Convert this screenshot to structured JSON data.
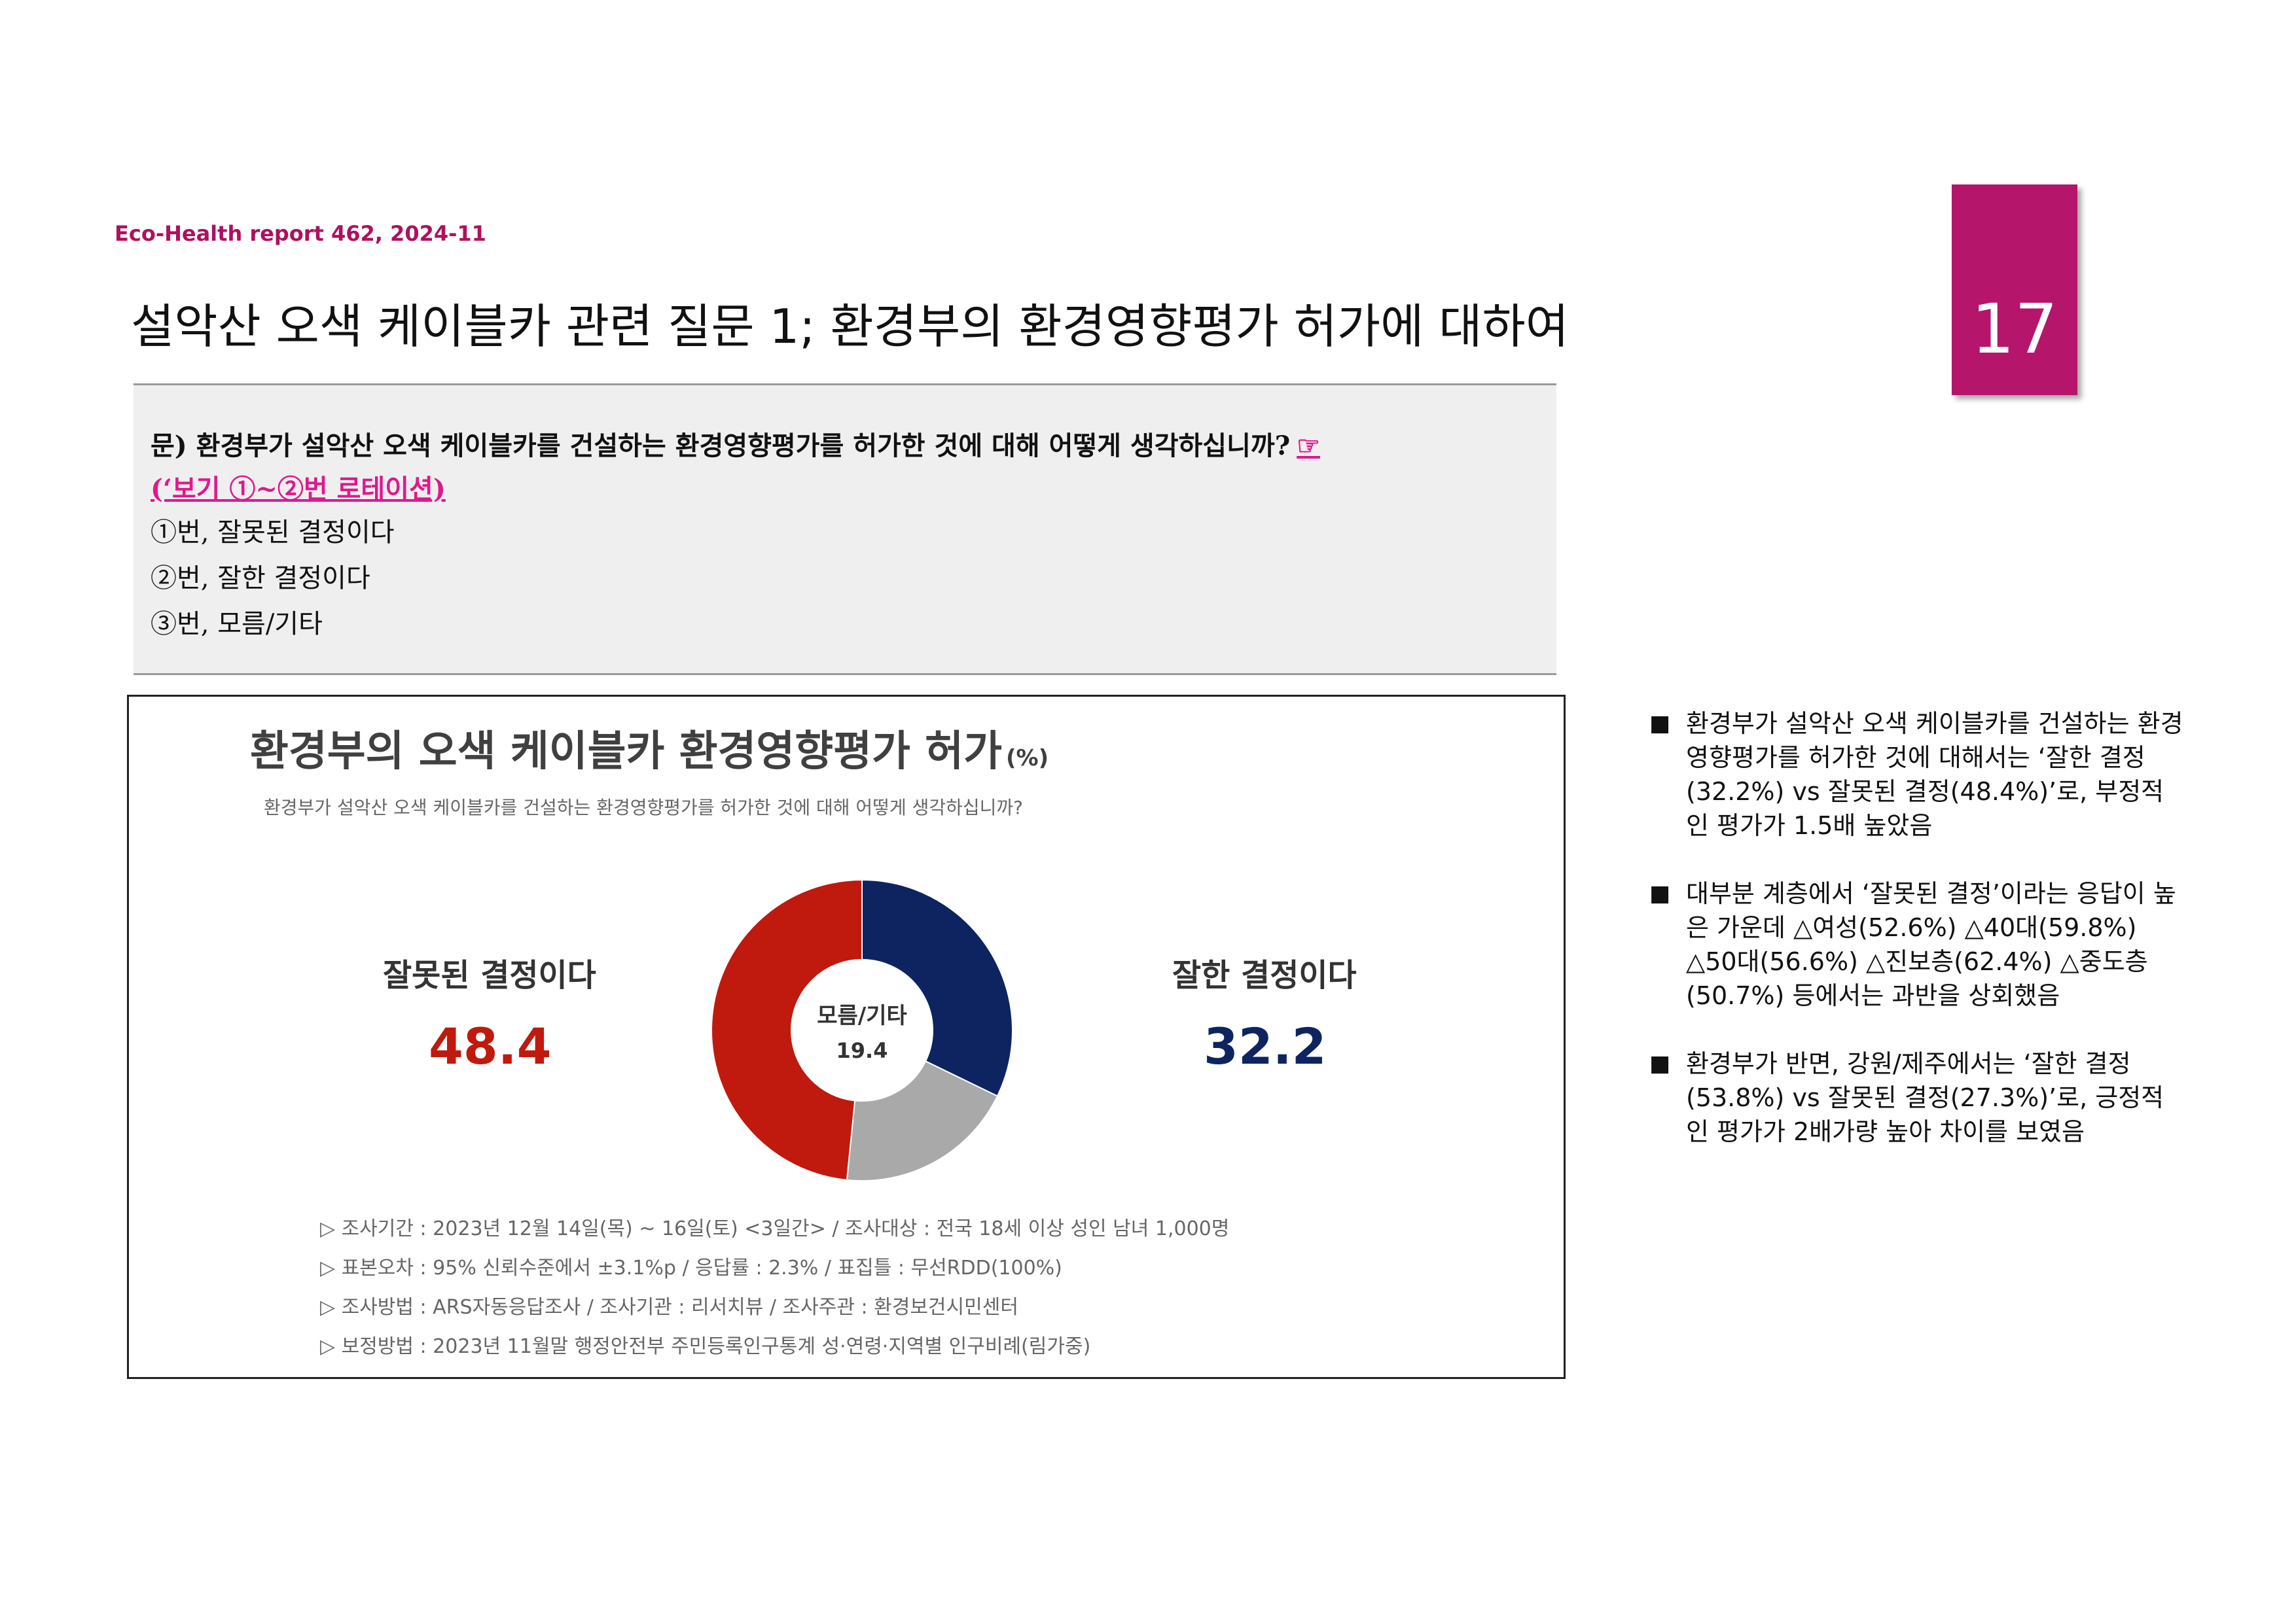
{
  "header": {
    "report_label": "Eco-Health report 462, 2024-11",
    "page_number": "17",
    "title": "설악산 오색 케이블카 관련 질문 1; 환경부의 환경영향평가 허가에 대하여"
  },
  "question_box": {
    "question": "문) 환경부가 설악산 오색 케이블카를 건설하는 환경영향평가를 허가한 것에 대해 어떻게 생각하십니까?",
    "pointer": "☞",
    "rotation_note": "(‘보기 ①~②번 로테이션)",
    "options": [
      "①번, 잘못된 결정이다",
      "②번, 잘한 결정이다",
      "③번, 모름/기타"
    ]
  },
  "chart_data": {
    "type": "pie",
    "title": "환경부의 오색 케이블카 환경영향평가 허가",
    "unit": "(%)",
    "subtitle": "환경부가 설악산 오색 케이블카를 건설하는 환경영향평가를 허가한 것에 대해 어떻게 생각하십니까?",
    "categories": [
      "잘한 결정이다",
      "모름/기타",
      "잘못된 결정이다"
    ],
    "values": [
      32.2,
      19.4,
      48.4
    ],
    "value_labels": [
      "32.2",
      "19.4",
      "48.4"
    ],
    "colors": [
      "#0d2461",
      "#a9a9a9",
      "#c0190e"
    ],
    "notes": [
      "▷ 조사기간 : 2023년 12월 14일(목) ~ 16일(토) <3일간> / 조사대상 : 전국 18세 이상 성인 남녀 1,000명",
      "▷ 표본오차 : 95% 신뢰수준에서 ±3.1%p / 응답률 : 2.3% / 표집틀 : 무선RDD(100%)",
      "▷ 조사방법 : ARS자동응답조사 / 조사기관 : 리서치뷰 / 조사주관 : 환경보건시민센터",
      "▷ 보정방법 : 2023년 11월말 행정안전부 주민등록인구통계 성·연령·지역별 인구비례(림가중)"
    ]
  },
  "bullets": {
    "marker": "■",
    "items": [
      "환경부가 설악산 오색 케이블카를 건설하는 환경영향평가를 허가한 것에 대해서는 ‘잘한 결정(32.2%) vs 잘못된 결정(48.4%)’로, 부정적인 평가가 1.5배 높았음",
      "대부분 계층에서 ‘잘못된 결정’이라는 응답이 높은 가운데 △여성(52.6%) △40대(59.8%) △50대(56.6%) △진보층(62.4%) △중도층(50.7%) 등에서는 과반을 상회했음",
      "환경부가 반면, 강원/제주에서는 ‘잘한 결정(53.8%) vs 잘못된 결정(27.3%)’로, 긍정적인 평가가 2배가량 높아 차이를 보였음"
    ]
  }
}
